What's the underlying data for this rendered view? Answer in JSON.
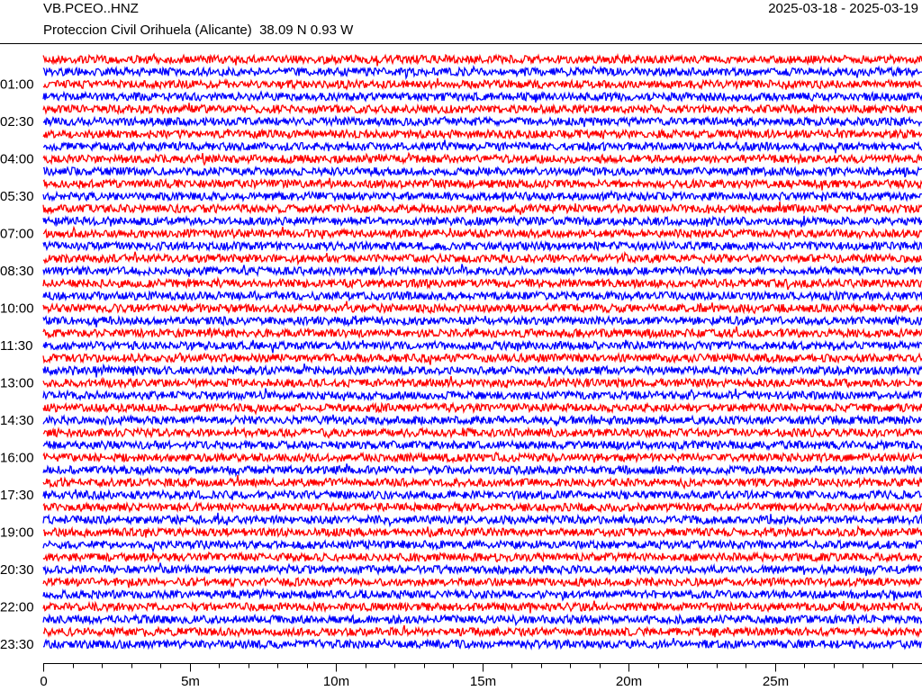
{
  "header": {
    "station": "VB.PCEO..HNZ",
    "location": "Proteccion Civil Orihuela (Alicante)  38.09 N 0.93 W",
    "date_range": "2025-03-18 - 2025-03-19"
  },
  "chart_data": {
    "type": "helicorder",
    "rows": [
      null,
      null,
      "01:00",
      null,
      null,
      "02:30",
      null,
      null,
      "04:00",
      null,
      null,
      "05:30",
      null,
      null,
      "07:00",
      null,
      null,
      "08:30",
      null,
      null,
      "10:00",
      null,
      null,
      "11:30",
      null,
      null,
      "13:00",
      null,
      null,
      "14:30",
      null,
      null,
      "16:00",
      null,
      null,
      "17:30",
      null,
      null,
      "19:00",
      null,
      null,
      "20:30",
      null,
      null,
      "22:00",
      null,
      null,
      "23:30"
    ],
    "colors": [
      "#ff0000",
      "#0000ff"
    ],
    "xlim": [
      0,
      30
    ],
    "xticks": [
      0,
      {
        "value": 5,
        "label": "5m"
      },
      {
        "value": 10,
        "label": "10m"
      },
      {
        "value": 15,
        "label": "15m"
      },
      {
        "value": 20,
        "label": "20m"
      },
      {
        "value": 25,
        "label": "25m"
      }
    ],
    "xminorticks": [
      1,
      2,
      3,
      4,
      6,
      7,
      8,
      9,
      11,
      12,
      13,
      14,
      16,
      17,
      18,
      19,
      21,
      22,
      23,
      24,
      26,
      27,
      28,
      29
    ]
  }
}
